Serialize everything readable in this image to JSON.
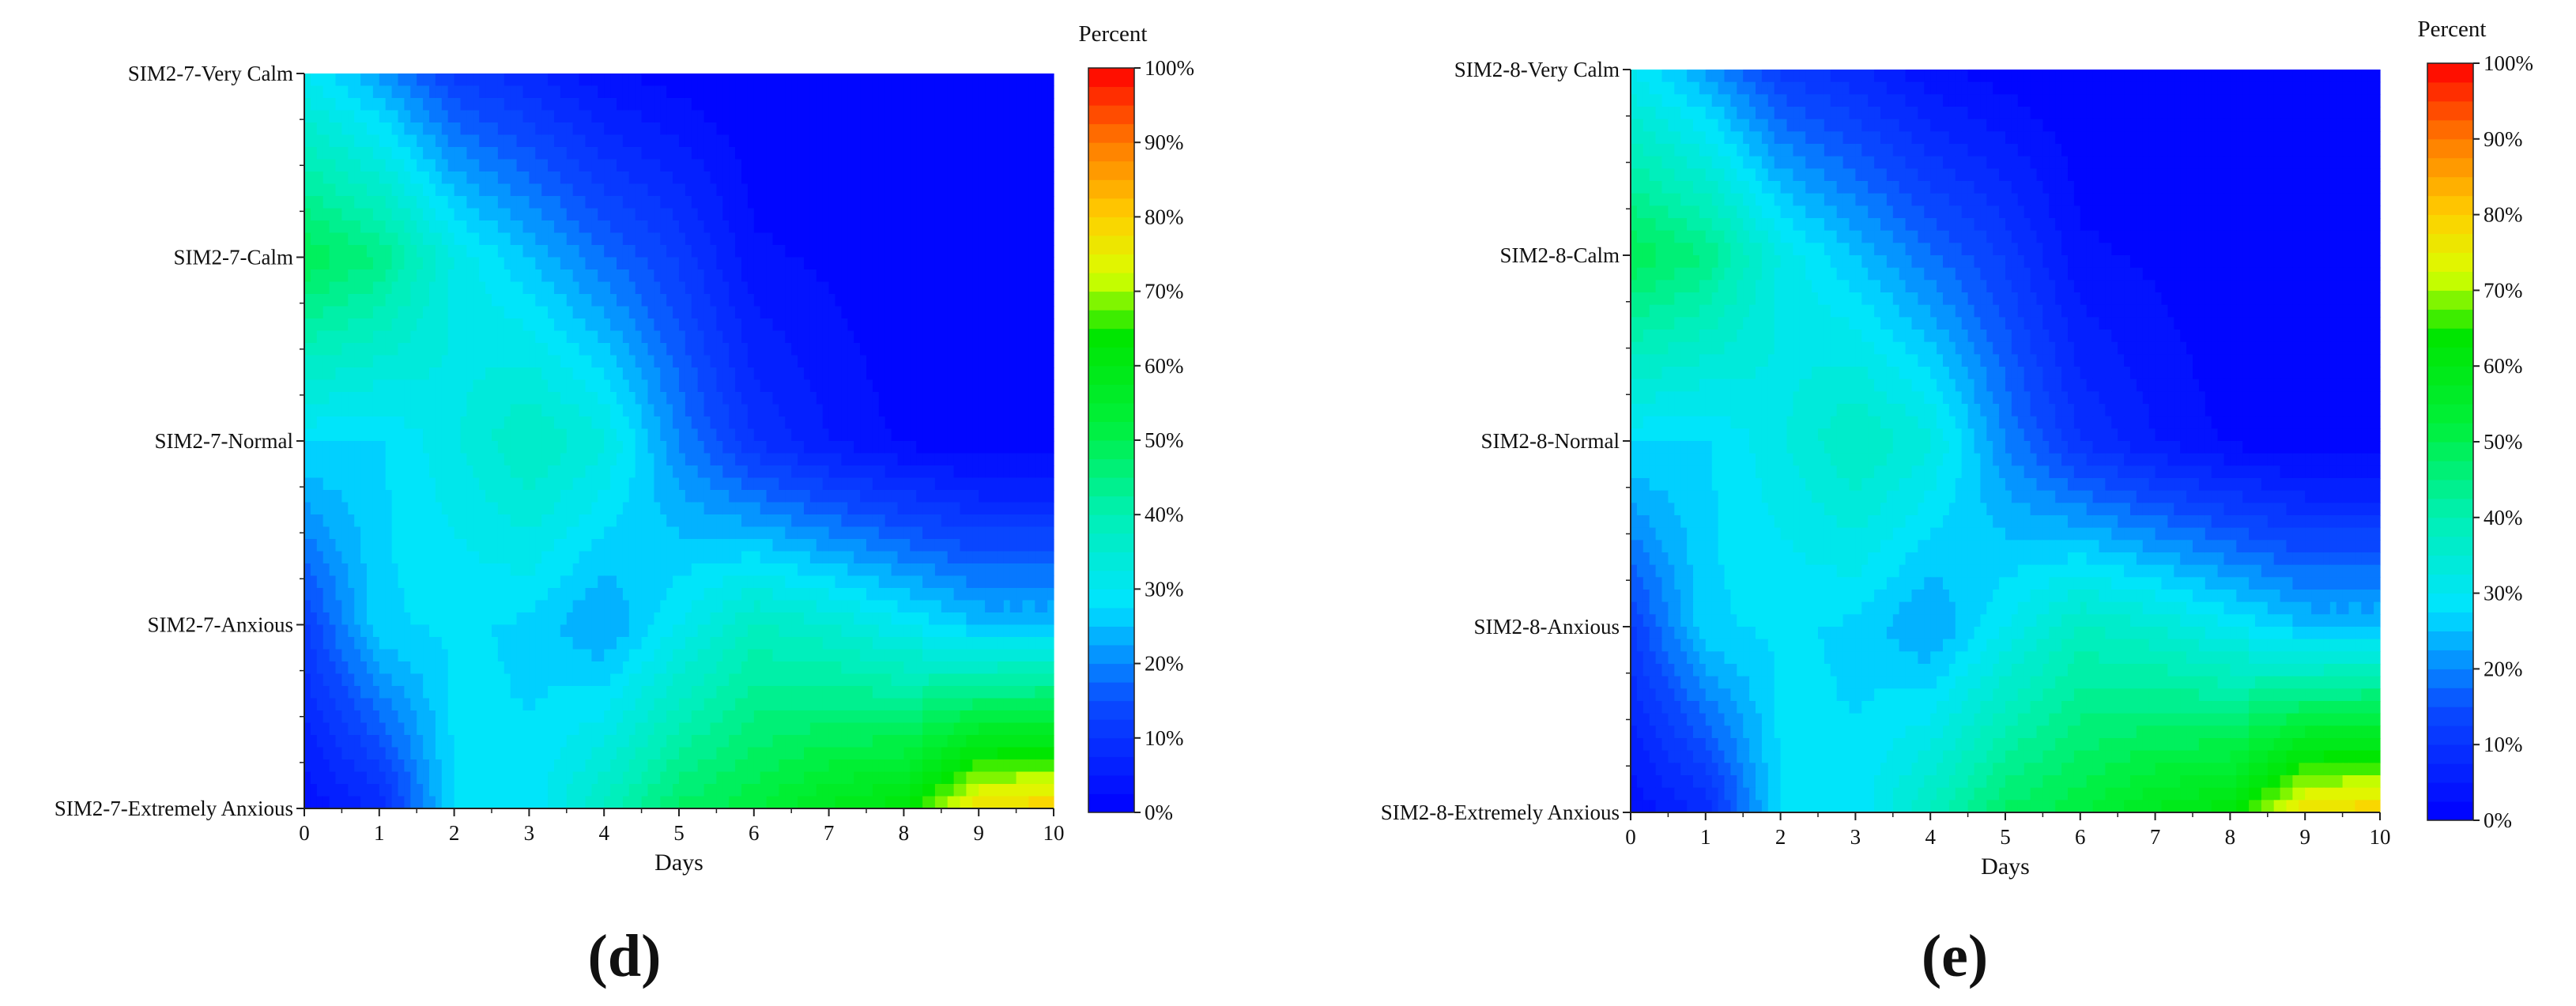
{
  "colorbar": {
    "title": "Percent",
    "ticks": [
      "0%",
      "10%",
      "20%",
      "30%",
      "40%",
      "50%",
      "60%",
      "70%",
      "80%",
      "90%",
      "100%"
    ],
    "stops": [
      {
        "v": 0,
        "color": "#0000ff"
      },
      {
        "v": 15,
        "color": "#0a4cff"
      },
      {
        "v": 28,
        "color": "#00e4ff"
      },
      {
        "v": 40,
        "color": "#00f0b4"
      },
      {
        "v": 52,
        "color": "#00f03c"
      },
      {
        "v": 64,
        "color": "#00e600"
      },
      {
        "v": 72,
        "color": "#d8ff00"
      },
      {
        "v": 80,
        "color": "#ffd000"
      },
      {
        "v": 90,
        "color": "#ff7a00"
      },
      {
        "v": 100,
        "color": "#ff0000"
      }
    ]
  },
  "chart_data": [
    {
      "type": "heatmap",
      "panel_label": "(d)",
      "xlabel": "Days",
      "x": [
        0,
        1,
        2,
        3,
        4,
        5,
        6,
        7,
        8,
        9,
        10
      ],
      "x_ticks": [
        "0",
        "1",
        "2",
        "3",
        "4",
        "5",
        "6",
        "7",
        "8",
        "9",
        "10"
      ],
      "y_categories": [
        "SIM2-7-Very Calm",
        "SIM2-7-Calm",
        "SIM2-7-Normal",
        "SIM2-7-Anxious",
        "SIM2-7-Extremely Anxious"
      ],
      "zlim": [
        0,
        100
      ],
      "z_unit": "Percent",
      "values": [
        [
          30,
          22,
          12,
          8,
          3,
          1,
          0,
          0,
          0,
          0,
          0
        ],
        [
          50,
          45,
          32,
          25,
          18,
          12,
          3,
          2,
          0,
          0,
          0
        ],
        [
          28,
          27,
          32,
          38,
          33,
          20,
          10,
          5,
          2,
          0,
          0
        ],
        [
          12,
          27,
          28,
          27,
          22,
          30,
          38,
          35,
          30,
          25,
          25
        ],
        [
          3,
          8,
          28,
          28,
          38,
          48,
          52,
          58,
          62,
          78,
          80
        ]
      ]
    },
    {
      "type": "heatmap",
      "panel_label": "(e)",
      "xlabel": "Days",
      "x": [
        0,
        1,
        2,
        3,
        4,
        5,
        6,
        7,
        8,
        9,
        10
      ],
      "x_ticks": [
        "0",
        "1",
        "2",
        "3",
        "4",
        "5",
        "6",
        "7",
        "8",
        "9",
        "10"
      ],
      "y_categories": [
        "SIM2-8-Very Calm",
        "SIM2-8-Calm",
        "SIM2-8-Normal",
        "SIM2-8-Anxious",
        "SIM2-8-Extremely Anxious"
      ],
      "zlim": [
        0,
        100
      ],
      "z_unit": "Percent",
      "values": [
        [
          30,
          22,
          12,
          8,
          3,
          1,
          0,
          0,
          0,
          0,
          0
        ],
        [
          50,
          45,
          32,
          25,
          18,
          12,
          3,
          2,
          0,
          0,
          0
        ],
        [
          28,
          27,
          32,
          38,
          33,
          20,
          10,
          5,
          2,
          0,
          0
        ],
        [
          12,
          27,
          28,
          27,
          22,
          30,
          38,
          35,
          30,
          25,
          25
        ],
        [
          3,
          8,
          28,
          28,
          38,
          48,
          52,
          58,
          62,
          78,
          80
        ]
      ]
    }
  ]
}
